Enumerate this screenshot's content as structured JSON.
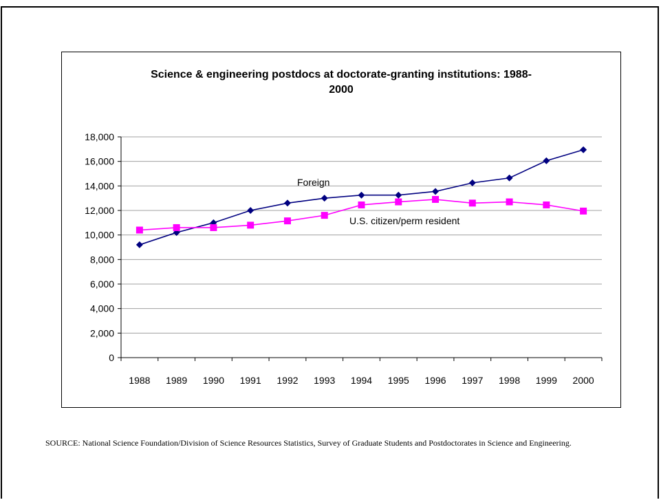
{
  "chart_data": {
    "type": "line",
    "title": "Science & engineering postdocs at doctorate-granting institutions: 1988-\n2000",
    "xlabel": "",
    "ylabel": "",
    "categories": [
      "1988",
      "1989",
      "1990",
      "1991",
      "1992",
      "1993",
      "1994",
      "1995",
      "1996",
      "1997",
      "1998",
      "1999",
      "2000"
    ],
    "ylim": [
      0,
      18000
    ],
    "yticks": [
      "0",
      "2,000",
      "4,000",
      "6,000",
      "8,000",
      "10,000",
      "12,000",
      "14,000",
      "16,000",
      "18,000"
    ],
    "grid": true,
    "series": [
      {
        "name": "Foreign",
        "color": "#000080",
        "marker": "diamond",
        "values": [
          9200,
          10200,
          11000,
          12000,
          12600,
          13000,
          13250,
          13250,
          13550,
          14250,
          14650,
          16050,
          16950
        ]
      },
      {
        "name": "U.S. citizen/perm resident",
        "color": "#FF00FF",
        "marker": "square",
        "values": [
          10400,
          10600,
          10600,
          10800,
          11150,
          11600,
          12450,
          12700,
          12900,
          12600,
          12700,
          12450,
          11950
        ]
      }
    ]
  },
  "source_note": "SOURCE:  National Science Foundation/Division of Science Resources Statistics, Survey of Graduate Students and Postdoctorates in Science and Engineering."
}
